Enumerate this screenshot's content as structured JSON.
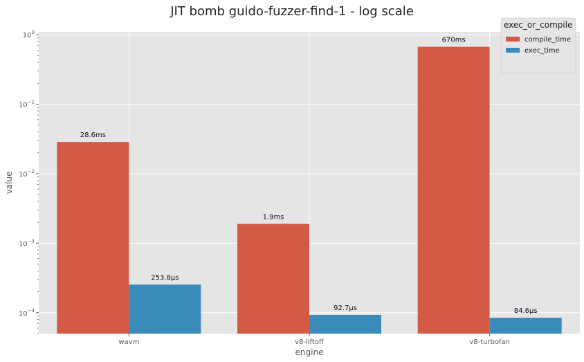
{
  "chart_data": {
    "type": "bar",
    "title": "JIT bomb guido-fuzzer-find-1 - log scale",
    "xlabel": "engine",
    "ylabel": "value",
    "yscale": "log",
    "ylim": [
      5e-05,
      1.1
    ],
    "grid": true,
    "legend_title": "exec_or_compile",
    "legend_position": "top-right",
    "categories": [
      "wavm",
      "v8-liftoff",
      "v8-turbofan"
    ],
    "series": [
      {
        "name": "compile_time",
        "color": "#d35a45",
        "values": [
          0.0286,
          0.0019,
          0.67
        ],
        "labels": [
          "28.6ms",
          "1.9ms",
          "670ms"
        ]
      },
      {
        "name": "exec_time",
        "color": "#3b8bba",
        "values": [
          0.0002538,
          9.27e-05,
          8.46e-05
        ],
        "labels": [
          "253.8µs",
          "92.7µs",
          "84.6µs"
        ]
      }
    ],
    "y_ticks": [
      {
        "value": 1,
        "base": "10",
        "exp": "0"
      },
      {
        "value": 0.1,
        "base": "10",
        "exp": "−1"
      },
      {
        "value": 0.01,
        "base": "10",
        "exp": "−2"
      },
      {
        "value": 0.001,
        "base": "10",
        "exp": "−3"
      },
      {
        "value": 0.0001,
        "base": "10",
        "exp": "−4"
      }
    ]
  }
}
